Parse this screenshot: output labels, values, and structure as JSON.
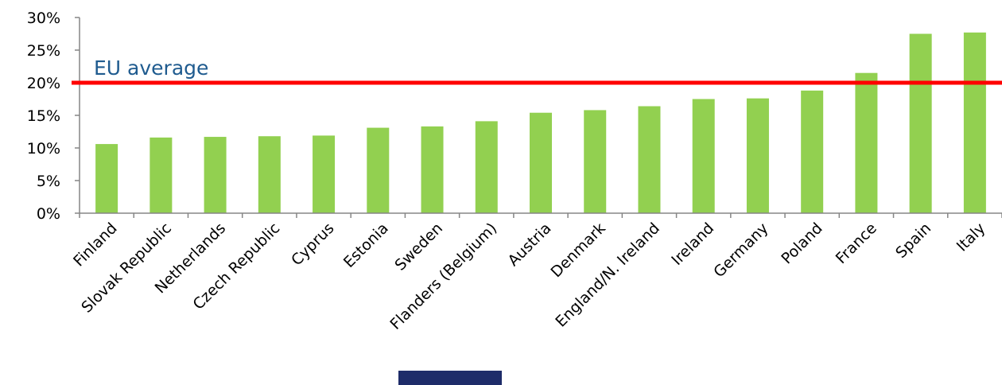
{
  "chart_data": {
    "type": "bar",
    "categories": [
      "Finland",
      "Slovak Republic",
      "Netherlands",
      "Czech Republic",
      "Cyprus",
      "Estonia",
      "Sweden",
      "Flanders (Belgium)",
      "Austria",
      "Denmark",
      "England/N. Ireland",
      "Ireland",
      "Germany",
      "Poland",
      "France",
      "Spain",
      "Italy"
    ],
    "values": [
      10.6,
      11.6,
      11.7,
      11.8,
      11.9,
      13.1,
      13.3,
      14.1,
      15.4,
      15.8,
      16.4,
      17.5,
      17.6,
      18.8,
      21.5,
      27.5,
      27.7
    ],
    "ylim": [
      0,
      30
    ],
    "yticks": [
      0,
      5,
      10,
      15,
      20,
      25,
      30
    ],
    "ytick_labels": [
      "0%",
      "5%",
      "10%",
      "15%",
      "20%",
      "25%",
      "30%"
    ],
    "grid": false,
    "reference_line": {
      "label": "EU average",
      "value": 20,
      "color": "#ff0000",
      "label_color": "#1f5b8f"
    },
    "colors": {
      "bar": "#92d050",
      "axis": "#868686"
    }
  }
}
